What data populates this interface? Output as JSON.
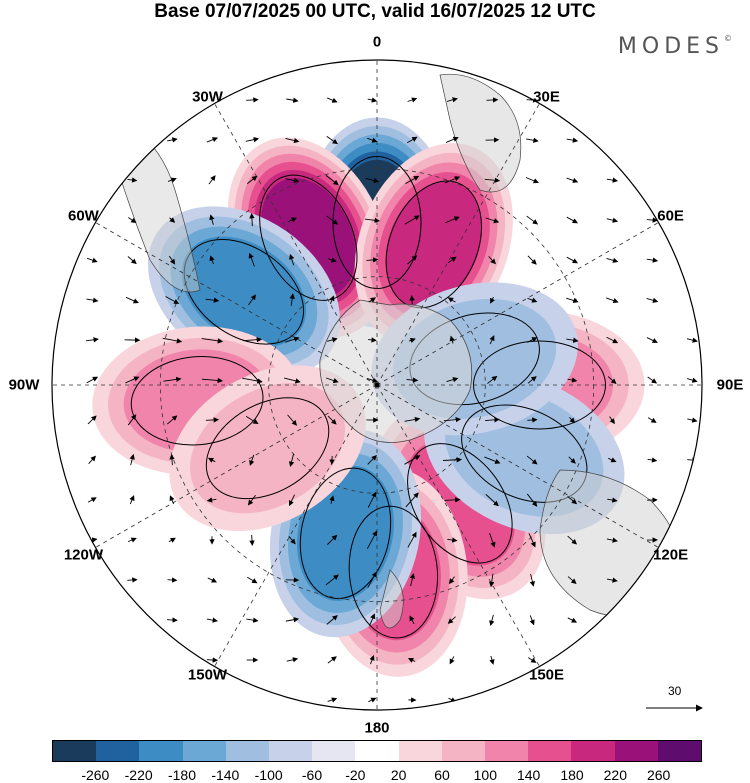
{
  "title": "Base 07/07/2025 00 UTC, valid 16/07/2025 12 UTC",
  "brand": "MODES",
  "brand_mark": "©",
  "longitude_labels": [
    "0",
    "30E",
    "60E",
    "90E",
    "120E",
    "150E",
    "180",
    "150W",
    "120W",
    "90W",
    "60W",
    "30W"
  ],
  "reference_vector": {
    "value": "30"
  },
  "colorbar": {
    "colors": [
      "#1a3b5c",
      "#2062a0",
      "#3d8dc4",
      "#6ba8d5",
      "#a0bfe0",
      "#c7d2ea",
      "#e6e6f2",
      "#ffffff",
      "#f9d6dc",
      "#f5b4c3",
      "#f084aa",
      "#e6508f",
      "#c8287e",
      "#9a1279",
      "#5e0d6e"
    ],
    "tick_labels": [
      "-260",
      "-220",
      "-180",
      "-140",
      "-100",
      "-60",
      "-20",
      "20",
      "60",
      "100",
      "140",
      "180",
      "220",
      "260"
    ]
  },
  "anomaly_centers": [
    {
      "lon": 0,
      "lat": -45,
      "value": -230
    },
    {
      "lon": -25,
      "lat": -45,
      "value": 230
    },
    {
      "lon": 22,
      "lat": -48,
      "value": 200
    },
    {
      "lon": -55,
      "lat": -45,
      "value": -170
    },
    {
      "lon": 90,
      "lat": -45,
      "value": 120
    },
    {
      "lon": -95,
      "lat": -40,
      "value": 100
    },
    {
      "lon": 145,
      "lat": -50,
      "value": 160
    },
    {
      "lon": 175,
      "lat": -38,
      "value": 140
    },
    {
      "lon": -168,
      "lat": -48,
      "value": -160
    },
    {
      "lon": 115,
      "lat": -45,
      "value": -80
    },
    {
      "lon": 75,
      "lat": -62,
      "value": -80
    },
    {
      "lon": -120,
      "lat": -55,
      "value": 80
    }
  ]
}
